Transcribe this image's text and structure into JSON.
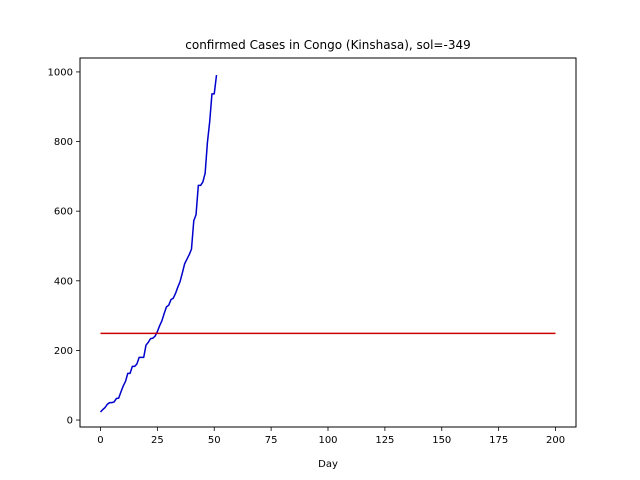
{
  "chart_data": {
    "type": "line",
    "title": "confirmed Cases in Congo (Kinshasa), sol=-349",
    "xlabel": "Day",
    "ylabel": "",
    "xlim": [
      -9,
      209
    ],
    "ylim": [
      -20,
      1040
    ],
    "xticks": [
      0,
      25,
      50,
      75,
      100,
      125,
      150,
      175,
      200
    ],
    "yticks": [
      0,
      200,
      400,
      600,
      800,
      1000
    ],
    "grid": false,
    "series": [
      {
        "color": "#0000cc",
        "x": [
          0,
          1,
          2,
          3,
          4,
          5,
          6,
          7,
          8,
          9,
          10,
          11,
          12,
          13,
          14,
          15,
          16,
          17,
          18,
          19,
          20,
          21,
          22,
          23,
          24,
          25,
          26,
          27,
          28,
          29,
          30,
          31,
          32,
          33,
          34,
          35,
          36,
          37,
          38,
          39,
          40,
          41,
          42,
          43,
          44,
          45,
          46,
          47,
          48,
          49,
          50,
          51
        ],
        "y": [
          23,
          30,
          36,
          45,
          50,
          50,
          52,
          62,
          63,
          81,
          98,
          111,
          134,
          134,
          154,
          154,
          161,
          180,
          180,
          180,
          215,
          223,
          234,
          235,
          241,
          254,
          271,
          285,
          306,
          325,
          330,
          346,
          350,
          364,
          382,
          398,
          423,
          449,
          462,
          475,
          491,
          572,
          590,
          674,
          674,
          684,
          709,
          797,
          857,
          937,
          937,
          991
        ]
      },
      {
        "color": "#cc0000",
        "x": [
          0,
          200
        ],
        "y": [
          249,
          249
        ]
      }
    ]
  }
}
